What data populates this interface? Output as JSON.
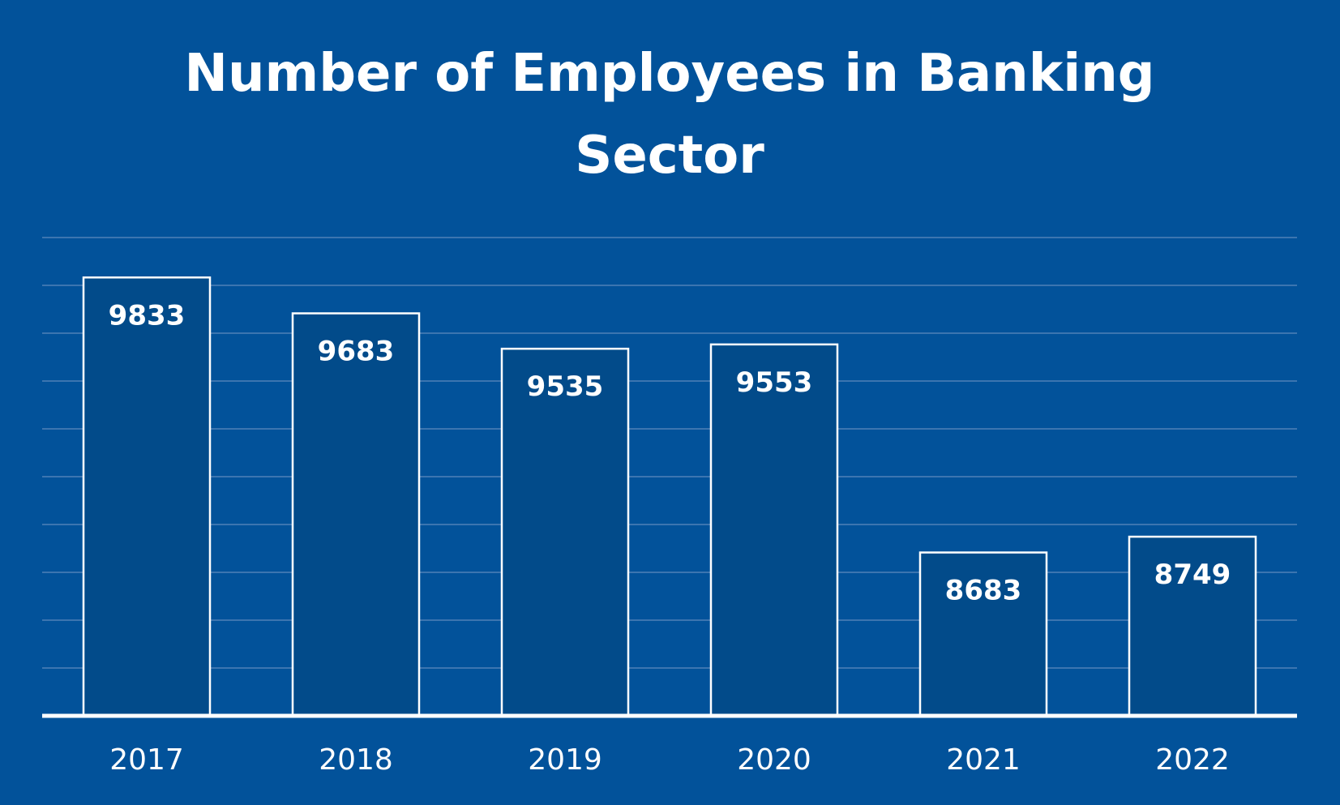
{
  "chart_data": {
    "type": "bar",
    "title_lines": [
      "Number of Employees in Banking",
      "Sector"
    ],
    "categories": [
      "2017",
      "2018",
      "2019",
      "2020",
      "2021",
      "2022"
    ],
    "values": [
      9833,
      9683,
      9535,
      9553,
      8683,
      8749
    ],
    "value_labels": [
      "9833",
      "9683",
      "9535",
      "9553",
      "8683",
      "8749"
    ],
    "xlabel": "",
    "ylabel": "",
    "ylim": [
      8000,
      10000
    ],
    "grid": true,
    "legend": "none",
    "colors": {
      "background": "#02529a",
      "bar_fill": "#024b8a",
      "bar_stroke": "#ffffff",
      "gridline": "#3c75b0",
      "text": "#ffffff"
    }
  }
}
